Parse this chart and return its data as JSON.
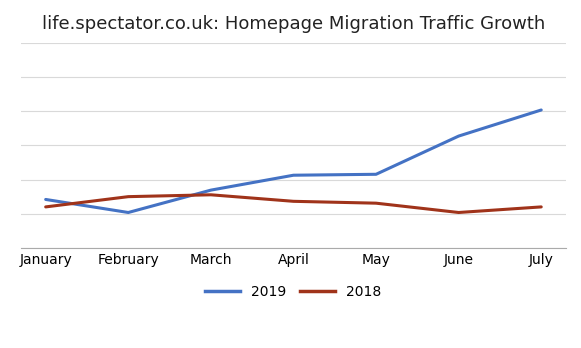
{
  "title": "life.spectator.co.uk: Homepage Migration Traffic Growth",
  "categories": [
    "January",
    "February",
    "March",
    "April",
    "May",
    "June",
    "July"
  ],
  "series": {
    "2019": {
      "values": [
        52,
        38,
        62,
        78,
        79,
        120,
        148
      ],
      "color": "#4472C4",
      "linewidth": 2.2
    },
    "2018": {
      "values": [
        44,
        55,
        57,
        50,
        48,
        38,
        44
      ],
      "color": "#A0331A",
      "linewidth": 2.2
    }
  },
  "ylim": [
    0,
    220
  ],
  "grid_nticks": 7,
  "background_color": "#ffffff",
  "grid_color": "#d9d9d9",
  "title_fontsize": 13,
  "tick_fontsize": 10,
  "legend_fontsize": 10
}
